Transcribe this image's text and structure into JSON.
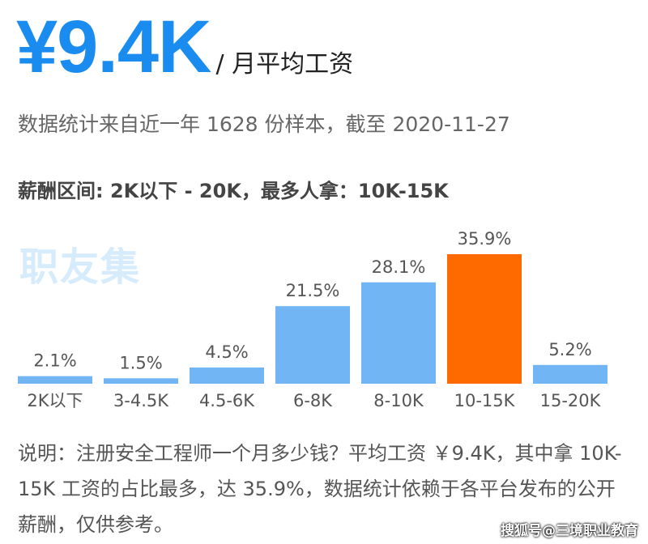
{
  "header": {
    "salary": "¥9.4K",
    "unit": "/ 月平均工资"
  },
  "source_text": "数据统计来自近一年 1628 份样本，截至 2020-11-27",
  "range_text": "薪酬区间: 2K以下 - 20K，最多人拿：10K-15K",
  "logo_text": "职友集",
  "colors": {
    "bar": "#72b5f5",
    "highlight": "#ff6a00",
    "accent": "#1a8cf0"
  },
  "chart_data": {
    "type": "bar",
    "categories": [
      "2K以下",
      "3-4.5K",
      "4.5-6K",
      "6-8K",
      "8-10K",
      "10-15K",
      "15-20K"
    ],
    "values": [
      2.1,
      1.5,
      4.5,
      21.5,
      28.1,
      35.9,
      5.2
    ],
    "value_labels": [
      "2.1%",
      "1.5%",
      "4.5%",
      "21.5%",
      "28.1%",
      "35.9%",
      "5.2%"
    ],
    "highlight_index": 5,
    "title": "",
    "xlabel": "",
    "ylabel": "",
    "ylim": [
      0,
      35.9
    ],
    "grid": false
  },
  "note_text": "说明：注册安全工程师一个月多少钱？平均工资 ￥9.4K，其中拿 10K-15K 工资的占比最多，达 35.9%，数据统计依赖于各平台发布的公开薪酬，仅供参考。",
  "corner_watermark": "搜狐号@三境职业教育"
}
